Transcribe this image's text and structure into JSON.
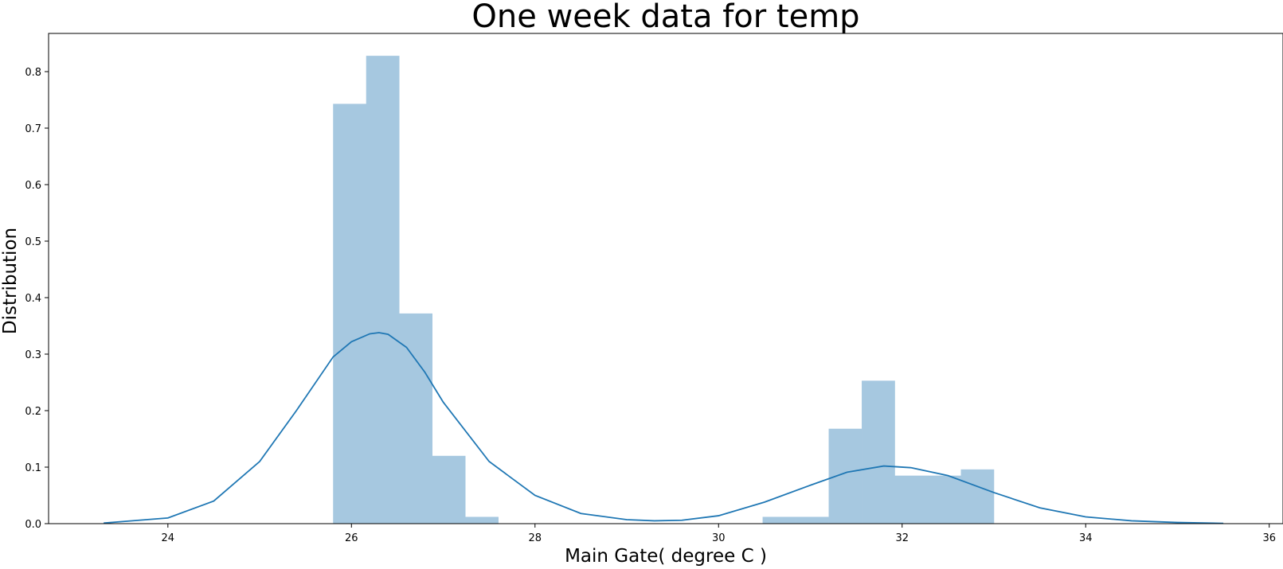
{
  "chart_data": {
    "type": "bar",
    "title": "One week data for temp",
    "xlabel": "Main Gate( degree C )",
    "ylabel": "Distribution",
    "xlim": [
      22.7,
      36.15
    ],
    "ylim": [
      0,
      0.8676
    ],
    "xticks": [
      24,
      26,
      28,
      30,
      32,
      34,
      36
    ],
    "yticks": [
      0.0,
      0.1,
      0.2,
      0.3,
      0.4,
      0.5,
      0.6,
      0.7,
      0.8
    ],
    "grid": false,
    "colors": {
      "bars": "#a6c8e0",
      "kde": "#1f77b4",
      "axes": "#000000"
    },
    "histogram": {
      "bins": [
        {
          "x0": 25.8,
          "x1": 26.16,
          "value": 0.743
        },
        {
          "x0": 26.16,
          "x1": 26.52,
          "value": 0.828
        },
        {
          "x0": 26.52,
          "x1": 26.88,
          "value": 0.372
        },
        {
          "x0": 26.88,
          "x1": 27.24,
          "value": 0.12
        },
        {
          "x0": 27.24,
          "x1": 27.6,
          "value": 0.012
        },
        {
          "x0": 30.48,
          "x1": 30.84,
          "value": 0.012
        },
        {
          "x0": 30.84,
          "x1": 31.2,
          "value": 0.012
        },
        {
          "x0": 31.2,
          "x1": 31.56,
          "value": 0.168
        },
        {
          "x0": 31.56,
          "x1": 31.92,
          "value": 0.253
        },
        {
          "x0": 31.92,
          "x1": 32.28,
          "value": 0.085
        },
        {
          "x0": 32.28,
          "x1": 32.64,
          "value": 0.085
        },
        {
          "x0": 32.64,
          "x1": 33.0,
          "value": 0.096
        }
      ]
    },
    "kde": {
      "x": [
        23.3,
        24.0,
        24.5,
        25.0,
        25.4,
        25.8,
        26.0,
        26.2,
        26.3,
        26.4,
        26.6,
        26.8,
        27.0,
        27.5,
        28.0,
        28.5,
        29.0,
        29.3,
        29.6,
        30.0,
        30.5,
        31.0,
        31.4,
        31.8,
        32.1,
        32.5,
        33.0,
        33.5,
        34.0,
        34.5,
        35.0,
        35.5
      ],
      "y": [
        0.001,
        0.01,
        0.04,
        0.11,
        0.2,
        0.295,
        0.322,
        0.336,
        0.338,
        0.335,
        0.312,
        0.268,
        0.215,
        0.11,
        0.05,
        0.018,
        0.007,
        0.005,
        0.006,
        0.014,
        0.038,
        0.068,
        0.091,
        0.102,
        0.099,
        0.085,
        0.055,
        0.028,
        0.012,
        0.005,
        0.002,
        0.0005
      ]
    }
  }
}
